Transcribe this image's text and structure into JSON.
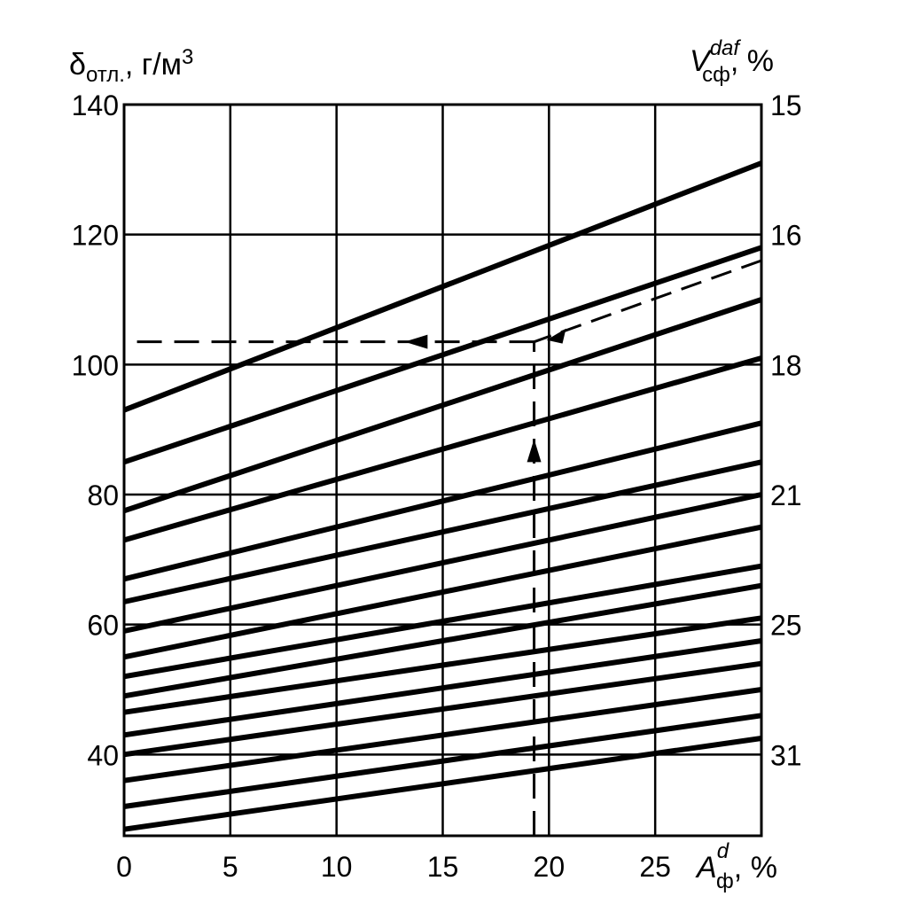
{
  "chart_data": {
    "type": "line",
    "title": "",
    "left_axis": {
      "label_symbol": "δ",
      "label_subscript": "отл.",
      "label_unit": ", г/м",
      "label_unit_sup": "3",
      "ticks": [
        "40",
        "60",
        "80",
        "100",
        "120",
        "140"
      ],
      "tick_values": [
        40,
        60,
        80,
        100,
        120,
        140
      ],
      "range": [
        27.5,
        140
      ]
    },
    "right_axis": {
      "label_symbol": "V",
      "label_superscript": "daf",
      "label_subscript": "сф",
      "label_unit": ", %",
      "ticks": [
        "15",
        "16",
        "18",
        "21",
        "25",
        "31"
      ],
      "tick_positions_left_units": [
        140,
        120,
        100,
        80,
        60,
        40
      ]
    },
    "x_axis": {
      "label_symbol": "A",
      "label_superscript": "d",
      "label_subscript": "ф",
      "label_unit": ", %",
      "ticks": [
        "0",
        "5",
        "10",
        "15",
        "20",
        "25"
      ],
      "tick_values": [
        0,
        5,
        10,
        15,
        20,
        25
      ],
      "range": [
        0,
        30
      ]
    },
    "grid": true,
    "series": [
      {
        "x": [
          0,
          30
        ],
        "y": [
          93,
          131
        ]
      },
      {
        "x": [
          0,
          30
        ],
        "y": [
          85,
          118
        ]
      },
      {
        "x": [
          0,
          30
        ],
        "y": [
          77.5,
          110
        ]
      },
      {
        "x": [
          0,
          30
        ],
        "y": [
          73,
          101
        ]
      },
      {
        "x": [
          0,
          30
        ],
        "y": [
          67,
          91
        ]
      },
      {
        "x": [
          0,
          30
        ],
        "y": [
          63.5,
          85
        ]
      },
      {
        "x": [
          0,
          30
        ],
        "y": [
          59,
          80
        ]
      },
      {
        "x": [
          0,
          30
        ],
        "y": [
          55,
          75
        ]
      },
      {
        "x": [
          0,
          30
        ],
        "y": [
          52,
          69
        ]
      },
      {
        "x": [
          0,
          30
        ],
        "y": [
          49,
          66
        ]
      },
      {
        "x": [
          0,
          30
        ],
        "y": [
          46.5,
          61
        ]
      },
      {
        "x": [
          0,
          30
        ],
        "y": [
          43,
          57.5
        ]
      },
      {
        "x": [
          0,
          30
        ],
        "y": [
          40,
          54
        ]
      },
      {
        "x": [
          0,
          30
        ],
        "y": [
          36,
          50
        ]
      },
      {
        "x": [
          0,
          30
        ],
        "y": [
          32,
          46
        ]
      },
      {
        "x": [
          0,
          30
        ],
        "y": [
          28.5,
          42.5
        ]
      }
    ],
    "example_path": {
      "vertical_x": 19.3,
      "vertical_from_y": 27.5,
      "vertical_to_y": 103.5,
      "horizontal_y": 103.5,
      "horizontal_to_x": 0,
      "diagonal_from": [
        30,
        116
      ],
      "diagonal_to": [
        19.3,
        103.5
      ]
    }
  }
}
